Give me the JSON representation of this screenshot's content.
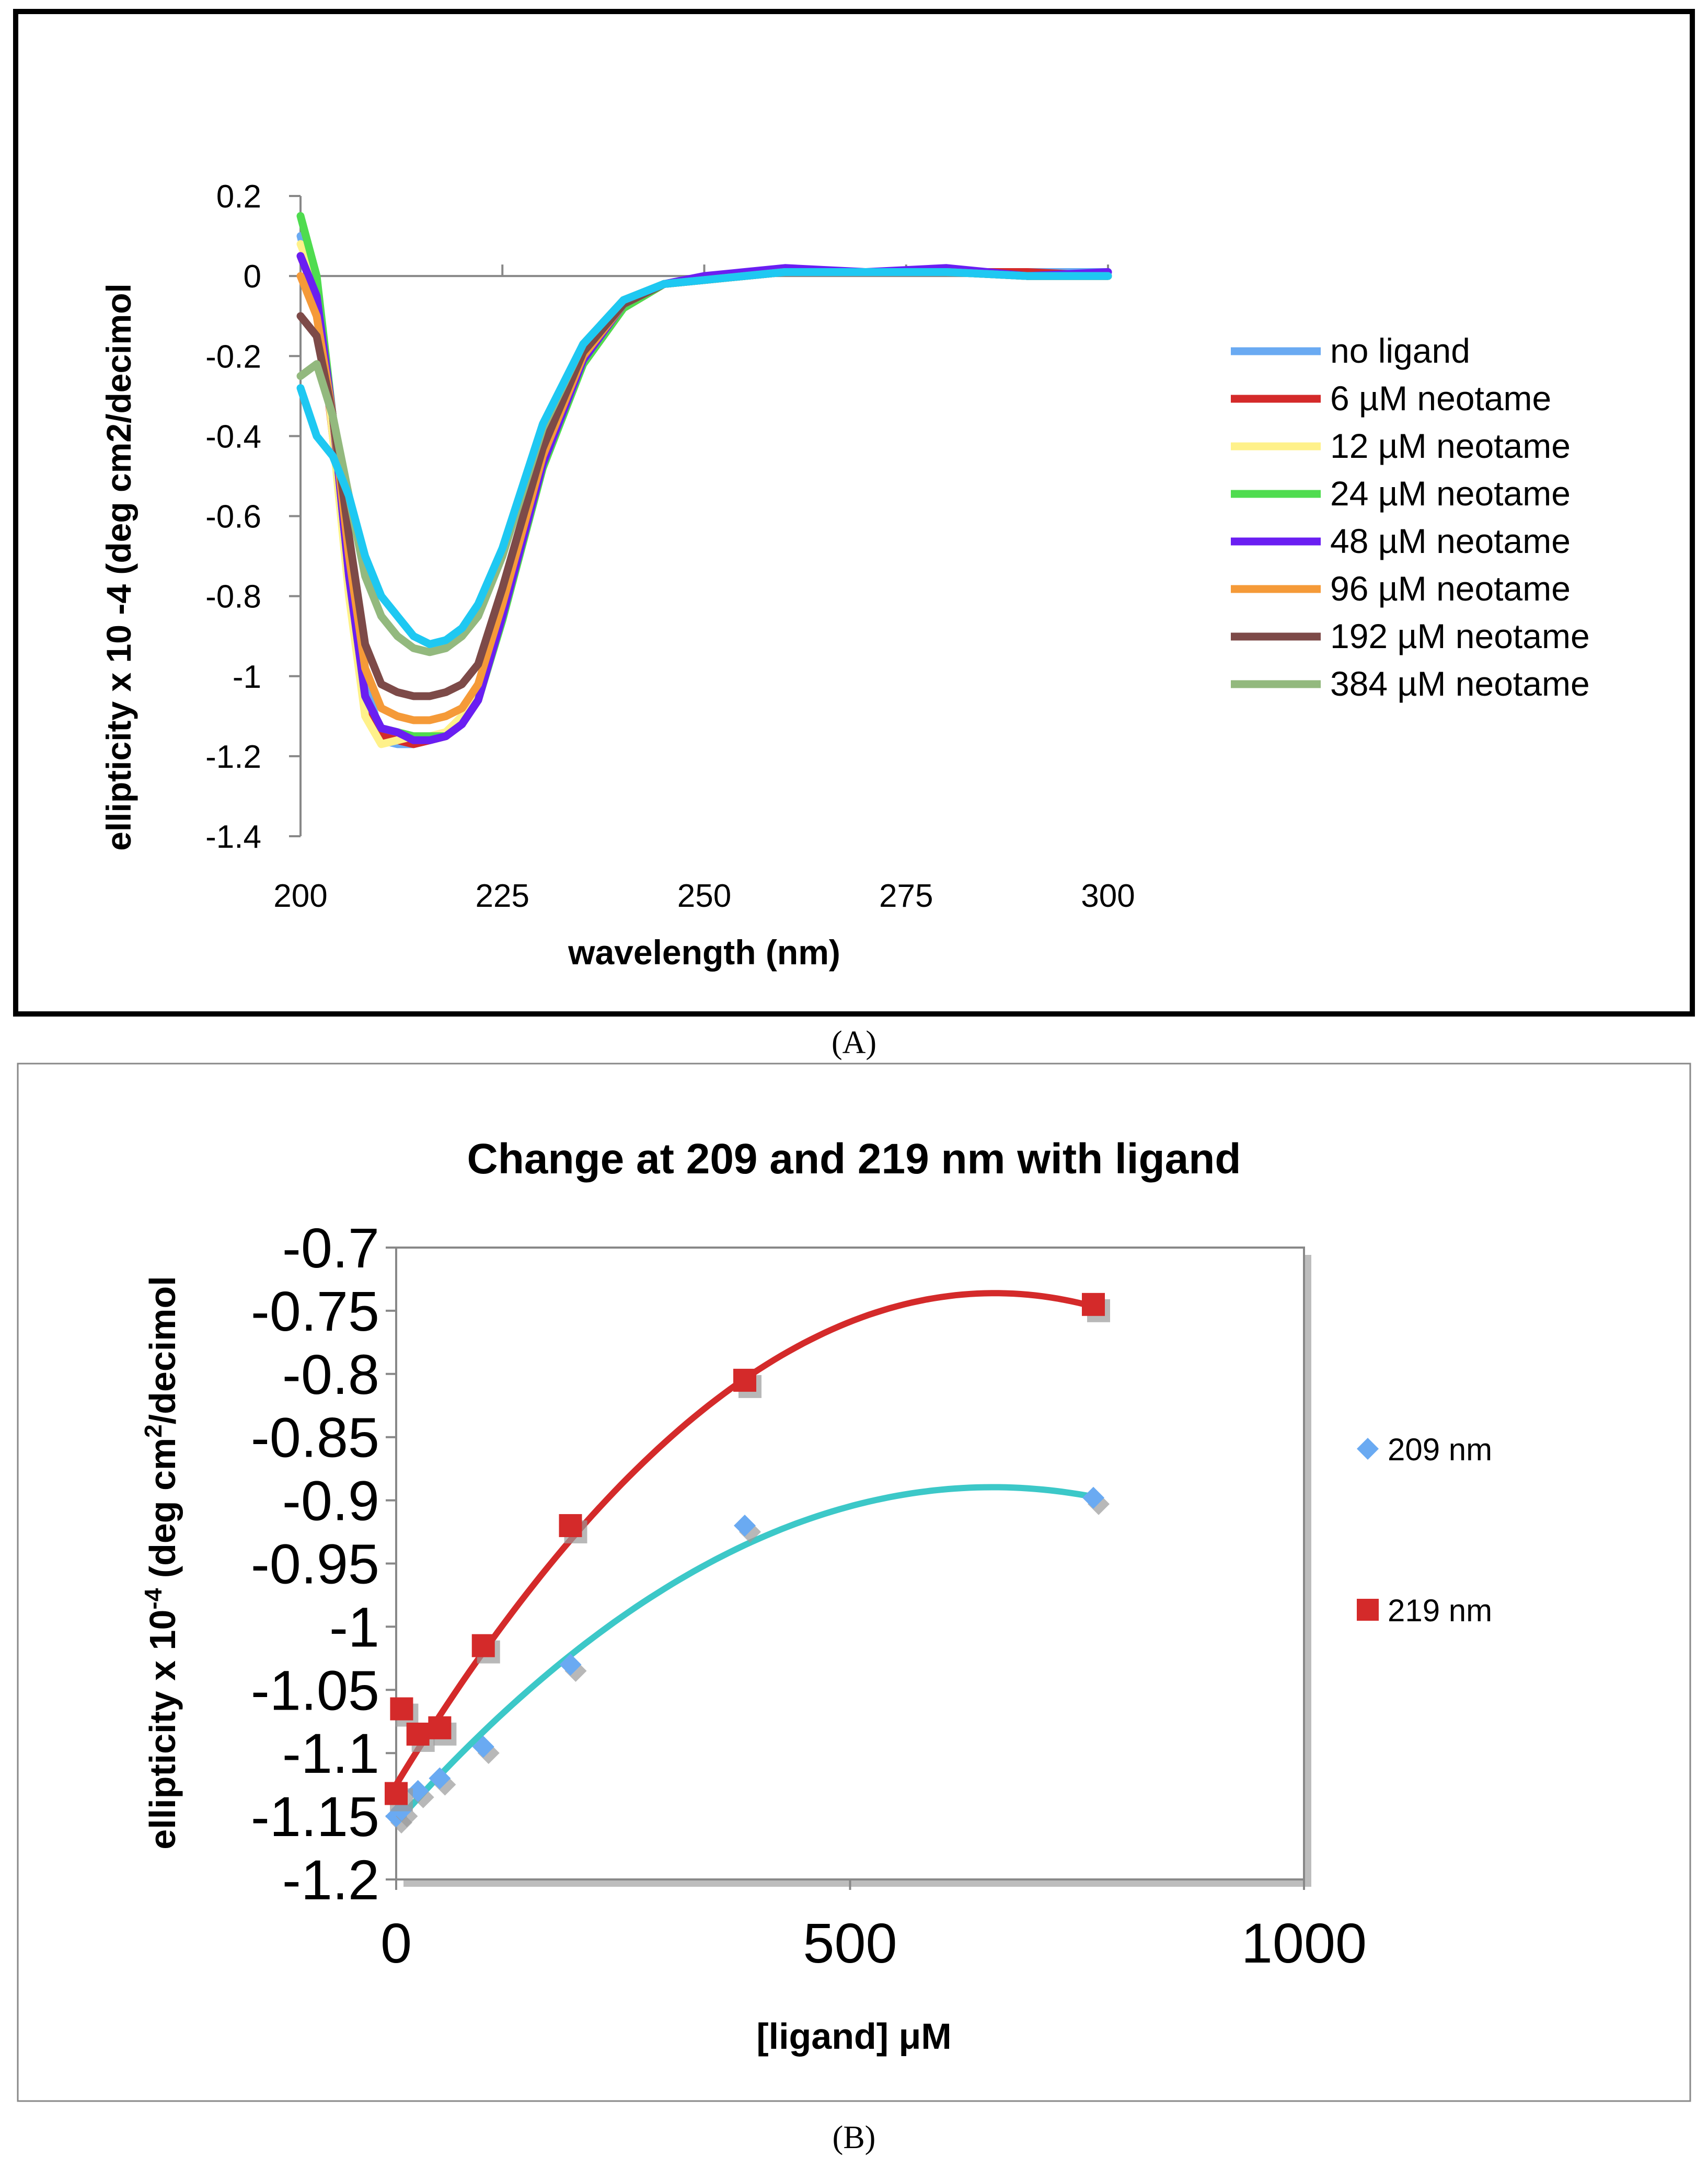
{
  "chart_data": [
    {
      "type": "line",
      "panel_label": "(A)",
      "title": "",
      "xlabel": "wavelength (nm)",
      "ylabel": "ellipticity x 10 -4 (deg cm2/decimol",
      "xlim": [
        200,
        300
      ],
      "ylim": [
        -1.4,
        0.2
      ],
      "x_ticks": [
        200,
        225,
        250,
        275,
        300
      ],
      "y_ticks": [
        0.2,
        0,
        -0.2,
        -0.4,
        -0.6,
        -0.8,
        -1,
        -1.2,
        -1.4
      ],
      "y_tick_labels": [
        "0.2",
        "0",
        "-0.2",
        "-0.4",
        "-0.6",
        "-0.8",
        "-1",
        "-1.2",
        "-1.4"
      ],
      "legend_position": "right",
      "grid": false,
      "x": [
        200,
        202,
        204,
        206,
        208,
        210,
        212,
        214,
        216,
        218,
        220,
        222,
        225,
        230,
        235,
        240,
        245,
        250,
        255,
        260,
        270,
        280,
        290,
        300
      ],
      "series": [
        {
          "name": "no ligand",
          "color": "#6aaaf2",
          "values": [
            0.1,
            -0.05,
            -0.35,
            -0.7,
            -1.0,
            -1.16,
            -1.17,
            -1.17,
            -1.16,
            -1.15,
            -1.11,
            -1.03,
            -0.82,
            -0.45,
            -0.2,
            -0.07,
            -0.02,
            -0.01,
            0.0,
            0.01,
            0.01,
            0.01,
            0.01,
            0.01
          ]
        },
        {
          "name": "6 µM neotame",
          "color": "#d42a2a",
          "values": [
            0.05,
            -0.05,
            -0.4,
            -0.75,
            -1.05,
            -1.15,
            -1.16,
            -1.17,
            -1.16,
            -1.15,
            -1.12,
            -1.05,
            -0.85,
            -0.47,
            -0.22,
            -0.08,
            -0.02,
            -0.01,
            0.0,
            0.01,
            0.01,
            0.01,
            0.01,
            0.0
          ]
        },
        {
          "name": "12 µM neotame",
          "color": "#fff18a",
          "values": [
            0.08,
            -0.02,
            -0.4,
            -0.8,
            -1.1,
            -1.17,
            -1.16,
            -1.15,
            -1.15,
            -1.14,
            -1.1,
            -1.03,
            -0.83,
            -0.46,
            -0.21,
            -0.07,
            -0.02,
            -0.01,
            0.0,
            0.01,
            0.01,
            0.01,
            0.0,
            0.0
          ]
        },
        {
          "name": "24 µM neotame",
          "color": "#4fdc4f",
          "values": [
            0.15,
            0.0,
            -0.35,
            -0.75,
            -1.05,
            -1.13,
            -1.14,
            -1.15,
            -1.15,
            -1.15,
            -1.12,
            -1.06,
            -0.86,
            -0.48,
            -0.22,
            -0.08,
            -0.02,
            -0.01,
            0.0,
            0.01,
            0.01,
            0.01,
            0.0,
            0.0
          ]
        },
        {
          "name": "48 µM neotame",
          "color": "#6a1ef2",
          "values": [
            0.05,
            -0.05,
            -0.35,
            -0.75,
            -1.05,
            -1.13,
            -1.14,
            -1.16,
            -1.16,
            -1.15,
            -1.12,
            -1.06,
            -0.85,
            -0.47,
            -0.21,
            -0.07,
            -0.02,
            0.0,
            0.01,
            0.02,
            0.01,
            0.02,
            0.0,
            0.01
          ]
        },
        {
          "name": "96 µM neotame",
          "color": "#f59a38",
          "values": [
            0.0,
            -0.1,
            -0.35,
            -0.7,
            -0.98,
            -1.08,
            -1.1,
            -1.11,
            -1.11,
            -1.1,
            -1.08,
            -1.02,
            -0.82,
            -0.45,
            -0.2,
            -0.07,
            -0.02,
            -0.01,
            0.0,
            0.01,
            0.01,
            0.01,
            0.0,
            0.0
          ]
        },
        {
          "name": "192 µM neotame",
          "color": "#7d4a48",
          "values": [
            -0.1,
            -0.15,
            -0.35,
            -0.65,
            -0.92,
            -1.02,
            -1.04,
            -1.05,
            -1.05,
            -1.04,
            -1.02,
            -0.97,
            -0.78,
            -0.43,
            -0.19,
            -0.07,
            -0.02,
            -0.01,
            0.0,
            0.01,
            0.01,
            0.01,
            0.0,
            0.0
          ]
        },
        {
          "name": "384 µM neotame",
          "color": "#93b97e",
          "values": [
            -0.25,
            -0.22,
            -0.35,
            -0.55,
            -0.75,
            -0.85,
            -0.9,
            -0.93,
            -0.94,
            -0.93,
            -0.9,
            -0.85,
            -0.7,
            -0.38,
            -0.17,
            -0.06,
            -0.02,
            -0.01,
            0.0,
            0.01,
            0.01,
            0.01,
            0.0,
            0.0
          ]
        },
        {
          "name": "",
          "color": "#1ec8f2",
          "values": [
            -0.28,
            -0.4,
            -0.45,
            -0.55,
            -0.7,
            -0.8,
            -0.85,
            -0.9,
            -0.92,
            -0.91,
            -0.88,
            -0.82,
            -0.68,
            -0.37,
            -0.17,
            -0.06,
            -0.02,
            -0.01,
            0.0,
            0.01,
            0.01,
            0.01,
            0.0,
            0.0
          ]
        }
      ]
    },
    {
      "type": "scatter",
      "panel_label": "(B)",
      "title": "Change at  209 and 219 nm with ligand",
      "xlabel": "[ligand] μM",
      "ylabel": "ellipticity x 10",
      "ylabel_exponent": "-4",
      "ylabel_tail": " (deg cm",
      "ylabel_exponent2": "2",
      "ylabel_end": "/decimol",
      "xlim": [
        0,
        1000
      ],
      "ylim": [
        -1.2,
        -0.7
      ],
      "x_ticks": [
        0,
        500,
        1000
      ],
      "y_ticks": [
        -0.7,
        -0.75,
        -0.8,
        -0.85,
        -0.9,
        -0.95,
        -1,
        -1.05,
        -1.1,
        -1.15,
        -1.2
      ],
      "y_tick_labels": [
        "-0.7",
        "-0.75",
        "-0.8",
        "-0.85",
        "-0.9",
        "-0.95",
        "-1",
        "-1.05",
        "-1.1",
        "-1.15",
        "-1.2"
      ],
      "legend_position": "right",
      "grid": false,
      "trendline": "polynomial order 2",
      "series": [
        {
          "name": "209 nm",
          "marker": "diamond",
          "color": "#6aaaf2",
          "trend_color": "#3cc8c8",
          "x": [
            0,
            6,
            24,
            48,
            96,
            192,
            384,
            768
          ],
          "values": [
            -1.15,
            -1.145,
            -1.13,
            -1.12,
            -1.095,
            -1.03,
            -0.92,
            -0.898
          ],
          "trend_coef": [
            -1.155,
            0.000808,
            -6.15e-07
          ]
        },
        {
          "name": "219 nm",
          "marker": "square",
          "color": "#d42a2a",
          "trend_color": "#d42a2a",
          "x": [
            0,
            6,
            24,
            48,
            96,
            192,
            384,
            768
          ],
          "values": [
            -1.132,
            -1.065,
            -1.085,
            -1.08,
            -1.015,
            -0.92,
            -0.805,
            -0.745
          ],
          "trend_coef": [
            -1.125,
            0.00118,
            -8.95e-07
          ]
        }
      ]
    }
  ]
}
